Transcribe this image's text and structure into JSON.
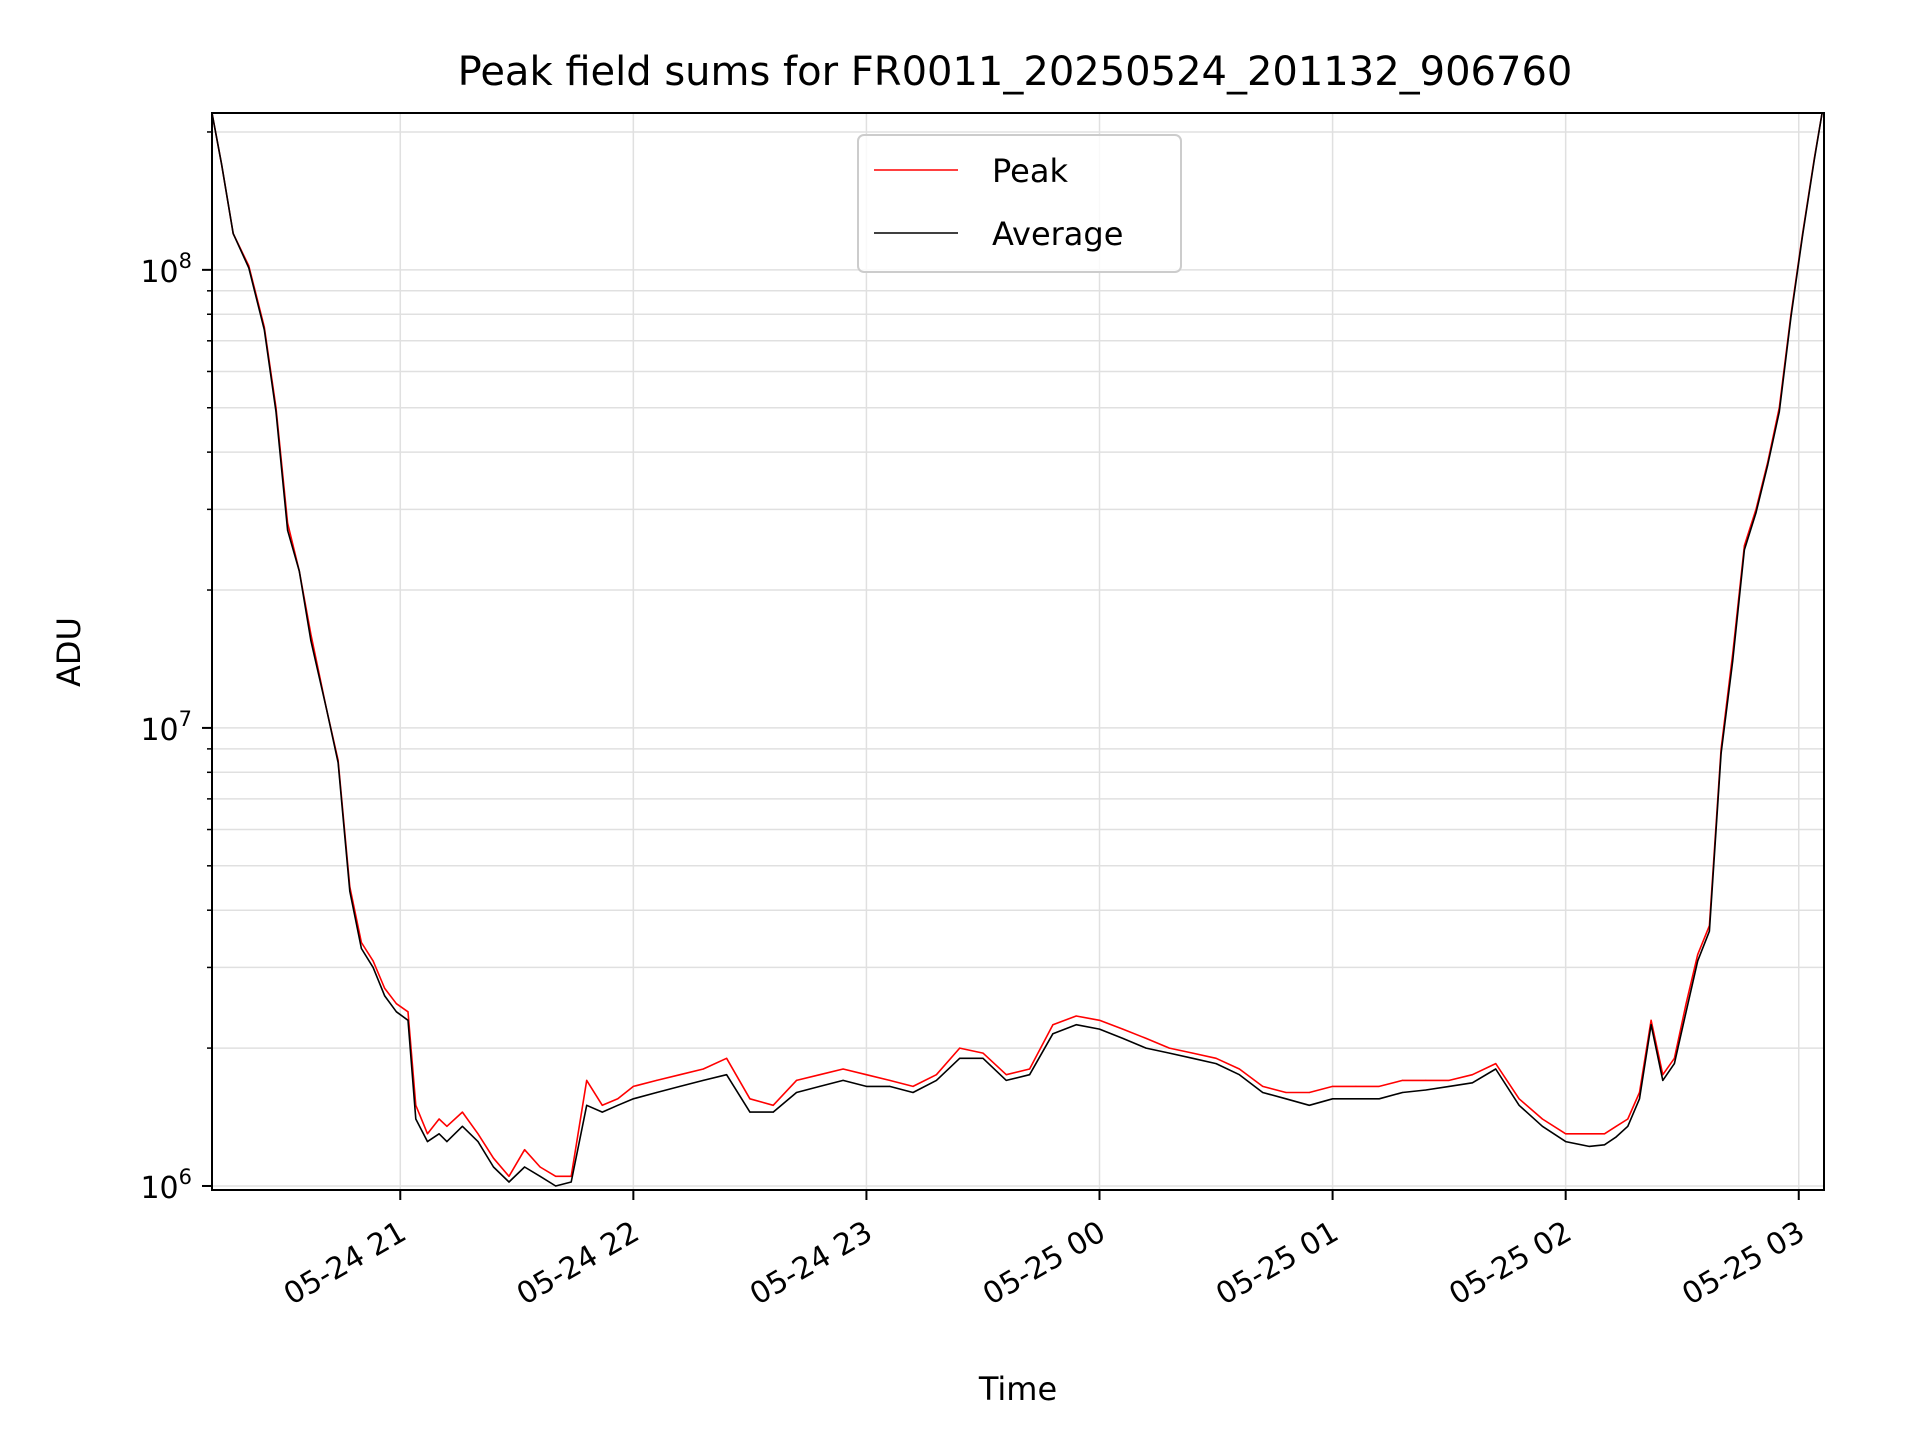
{
  "chart_data": {
    "type": "line",
    "title": "Peak field sums for FR0011_20250524_201132_906760",
    "xlabel": "Time",
    "ylabel": "ADU",
    "yscale": "log",
    "ylim": [
      980000,
      220000000
    ],
    "xlim": [
      "2025-05-24 20:11:32",
      "2025-05-25 03:06:30"
    ],
    "grid": true,
    "legend_position": "top-center",
    "x_tick_labels": [
      "05-24 21",
      "05-24 22",
      "05-24 23",
      "05-25 00",
      "05-25 01",
      "05-25 02",
      "05-25 03"
    ],
    "x_ticks": [
      "2025-05-24 21:00",
      "2025-05-24 22:00",
      "2025-05-24 23:00",
      "2025-05-25 00:00",
      "2025-05-25 01:00",
      "2025-05-25 02:00",
      "2025-05-25 03:00"
    ],
    "y_tick_labels": [
      {
        "value": 1000000,
        "base": "10",
        "exp": "6"
      },
      {
        "value": 10000000,
        "base": "10",
        "exp": "7"
      },
      {
        "value": 100000000,
        "base": "10",
        "exp": "8"
      }
    ],
    "x": [
      "2025-05-24 20:11",
      "2025-05-24 20:14",
      "2025-05-24 20:17",
      "2025-05-24 20:21",
      "2025-05-24 20:25",
      "2025-05-24 20:28",
      "2025-05-24 20:31",
      "2025-05-24 20:34",
      "2025-05-24 20:37",
      "2025-05-24 20:41",
      "2025-05-24 20:44",
      "2025-05-24 20:47",
      "2025-05-24 20:50",
      "2025-05-24 20:53",
      "2025-05-24 20:56",
      "2025-05-24 20:59",
      "2025-05-24 21:02",
      "2025-05-24 21:04",
      "2025-05-24 21:07",
      "2025-05-24 21:10",
      "2025-05-24 21:12",
      "2025-05-24 21:16",
      "2025-05-24 21:20",
      "2025-05-24 21:24",
      "2025-05-24 21:28",
      "2025-05-24 21:32",
      "2025-05-24 21:36",
      "2025-05-24 21:40",
      "2025-05-24 21:44",
      "2025-05-24 21:48",
      "2025-05-24 21:52",
      "2025-05-24 21:56",
      "2025-05-24 22:00",
      "2025-05-24 22:06",
      "2025-05-24 22:12",
      "2025-05-24 22:18",
      "2025-05-24 22:24",
      "2025-05-24 22:30",
      "2025-05-24 22:36",
      "2025-05-24 22:42",
      "2025-05-24 22:48",
      "2025-05-24 22:54",
      "2025-05-24 23:00",
      "2025-05-24 23:06",
      "2025-05-24 23:12",
      "2025-05-24 23:18",
      "2025-05-24 23:24",
      "2025-05-24 23:30",
      "2025-05-24 23:36",
      "2025-05-24 23:42",
      "2025-05-24 23:48",
      "2025-05-24 23:54",
      "2025-05-25 00:00",
      "2025-05-25 00:06",
      "2025-05-25 00:12",
      "2025-05-25 00:18",
      "2025-05-25 00:24",
      "2025-05-25 00:30",
      "2025-05-25 00:36",
      "2025-05-25 00:42",
      "2025-05-25 00:48",
      "2025-05-25 00:54",
      "2025-05-25 01:00",
      "2025-05-25 01:06",
      "2025-05-25 01:12",
      "2025-05-25 01:18",
      "2025-05-25 01:24",
      "2025-05-25 01:30",
      "2025-05-25 01:36",
      "2025-05-25 01:42",
      "2025-05-25 01:48",
      "2025-05-25 01:54",
      "2025-05-25 02:00",
      "2025-05-25 02:06",
      "2025-05-25 02:10",
      "2025-05-25 02:13",
      "2025-05-25 02:16",
      "2025-05-25 02:19",
      "2025-05-25 02:22",
      "2025-05-25 02:25",
      "2025-05-25 02:28",
      "2025-05-25 02:31",
      "2025-05-25 02:34",
      "2025-05-25 02:37",
      "2025-05-25 02:40",
      "2025-05-25 02:43",
      "2025-05-25 02:46",
      "2025-05-25 02:49",
      "2025-05-25 02:52",
      "2025-05-25 02:55",
      "2025-05-25 02:58",
      "2025-05-25 03:01",
      "2025-05-25 03:04",
      "2025-05-25 03:06"
    ],
    "series": [
      {
        "name": "Peak",
        "color": "#ff0000",
        "values": [
          220000000,
          170000000,
          120000000,
          102000000,
          75000000,
          50000000,
          28000000,
          22000000,
          16000000,
          11000000,
          8500000,
          4500000,
          3400000,
          3100000,
          2700000,
          2500000,
          2400000,
          1500000,
          1300000,
          1400000,
          1350000,
          1450000,
          1300000,
          1150000,
          1050000,
          1200000,
          1100000,
          1050000,
          1050000,
          1700000,
          1500000,
          1550000,
          1650000,
          1700000,
          1750000,
          1800000,
          1900000,
          1550000,
          1500000,
          1700000,
          1750000,
          1800000,
          1750000,
          1700000,
          1650000,
          1750000,
          2000000,
          1950000,
          1750000,
          1800000,
          2250000,
          2350000,
          2300000,
          2200000,
          2100000,
          2000000,
          1950000,
          1900000,
          1800000,
          1650000,
          1600000,
          1600000,
          1650000,
          1650000,
          1650000,
          1700000,
          1700000,
          1700000,
          1750000,
          1850000,
          1550000,
          1400000,
          1300000,
          1300000,
          1300000,
          1350000,
          1400000,
          1600000,
          2300000,
          1750000,
          1900000,
          2500000,
          3200000,
          3700000,
          9000000,
          14500000,
          25000000,
          30000000,
          38000000,
          50000000,
          80000000,
          120000000,
          175000000,
          220000000
        ]
      },
      {
        "name": "Average",
        "color": "#000000",
        "values": [
          220000000,
          170000000,
          120000000,
          101000000,
          74000000,
          49000000,
          27000000,
          22000000,
          15500000,
          11000000,
          8400000,
          4400000,
          3300000,
          3000000,
          2600000,
          2400000,
          2300000,
          1400000,
          1250000,
          1300000,
          1250000,
          1350000,
          1250000,
          1100000,
          1020000,
          1100000,
          1050000,
          1000000,
          1020000,
          1500000,
          1450000,
          1500000,
          1550000,
          1600000,
          1650000,
          1700000,
          1750000,
          1450000,
          1450000,
          1600000,
          1650000,
          1700000,
          1650000,
          1650000,
          1600000,
          1700000,
          1900000,
          1900000,
          1700000,
          1750000,
          2150000,
          2250000,
          2200000,
          2100000,
          2000000,
          1950000,
          1900000,
          1850000,
          1750000,
          1600000,
          1550000,
          1500000,
          1550000,
          1550000,
          1550000,
          1600000,
          1620000,
          1650000,
          1680000,
          1800000,
          1500000,
          1350000,
          1250000,
          1220000,
          1230000,
          1280000,
          1350000,
          1550000,
          2250000,
          1700000,
          1850000,
          2400000,
          3100000,
          3600000,
          8800000,
          14000000,
          24500000,
          29500000,
          37500000,
          49000000,
          79000000,
          119000000,
          174000000,
          220000000
        ]
      }
    ]
  }
}
